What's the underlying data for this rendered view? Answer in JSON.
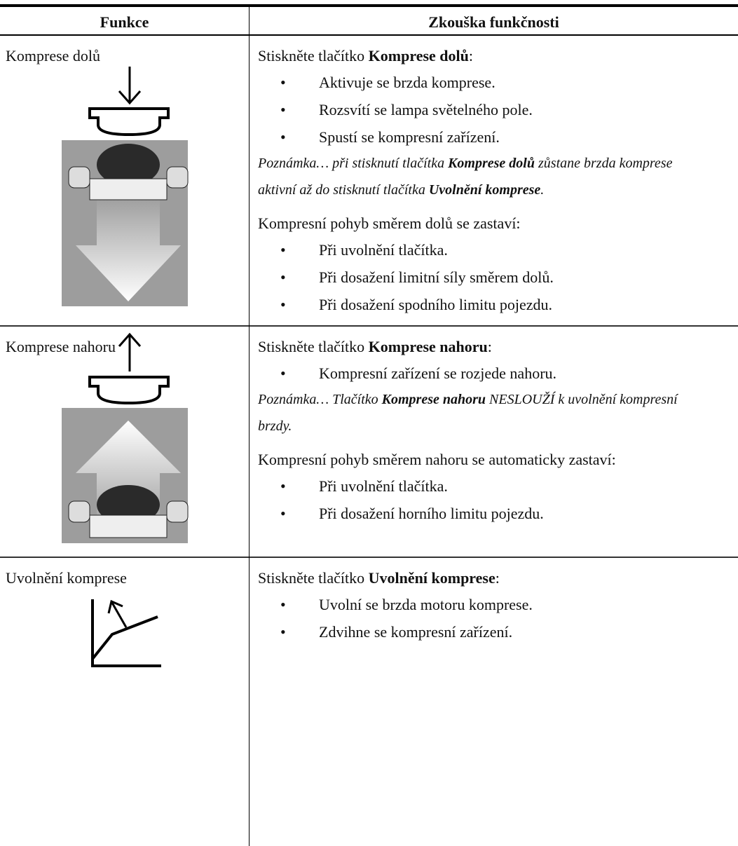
{
  "table": {
    "header": [
      "Funkce",
      "Zkouška funkčnosti"
    ],
    "rows": [
      {
        "function": "Komprese dolů",
        "intro": [
          "Stiskněte tlačítko ",
          "Komprese dolů",
          ":"
        ],
        "bullets": [
          "Aktivuje se brzda komprese.",
          "Rozsvítí se lampa světelného pole.",
          "Spustí se kompresní zařízení."
        ],
        "note": [
          "Poznámka… při stisknutí tlačítka ",
          "Komprese dolů",
          " zůstane brzda komprese aktivní až do stisknutí tlačítka ",
          "Uvolnění komprese",
          "."
        ],
        "stop": "Kompresní pohyb směrem dolů se zastaví:",
        "stop_bullets": [
          "Při uvolnění tlačítka.",
          "Při dosažení limitní síly směrem dolů.",
          "Při dosažení spodního limitu pojezdu."
        ]
      },
      {
        "function": "Komprese nahoru",
        "intro": [
          "Stiskněte tlačítko ",
          "Komprese nahoru",
          ":"
        ],
        "bullets": [
          "Kompresní zařízení se rozjede nahoru."
        ],
        "note": [
          "Poznámka… Tlačítko ",
          "Komprese nahoru",
          " NESLOUŽÍ k uvolnění kompresní brzdy."
        ],
        "stop": "Kompresní pohyb směrem nahoru se automaticky zastaví:",
        "stop_bullets": [
          "Při uvolnění tlačítka.",
          "Při dosažení horního limitu pojezdu."
        ]
      },
      {
        "function": "Uvolnění komprese",
        "intro": [
          "Stiskněte tlačítko ",
          "Uvolnění komprese",
          ":"
        ],
        "bullets": [
          "Uvolní se brzda motoru komprese.",
          "Zdvihne se kompresní zařízení."
        ]
      }
    ]
  }
}
